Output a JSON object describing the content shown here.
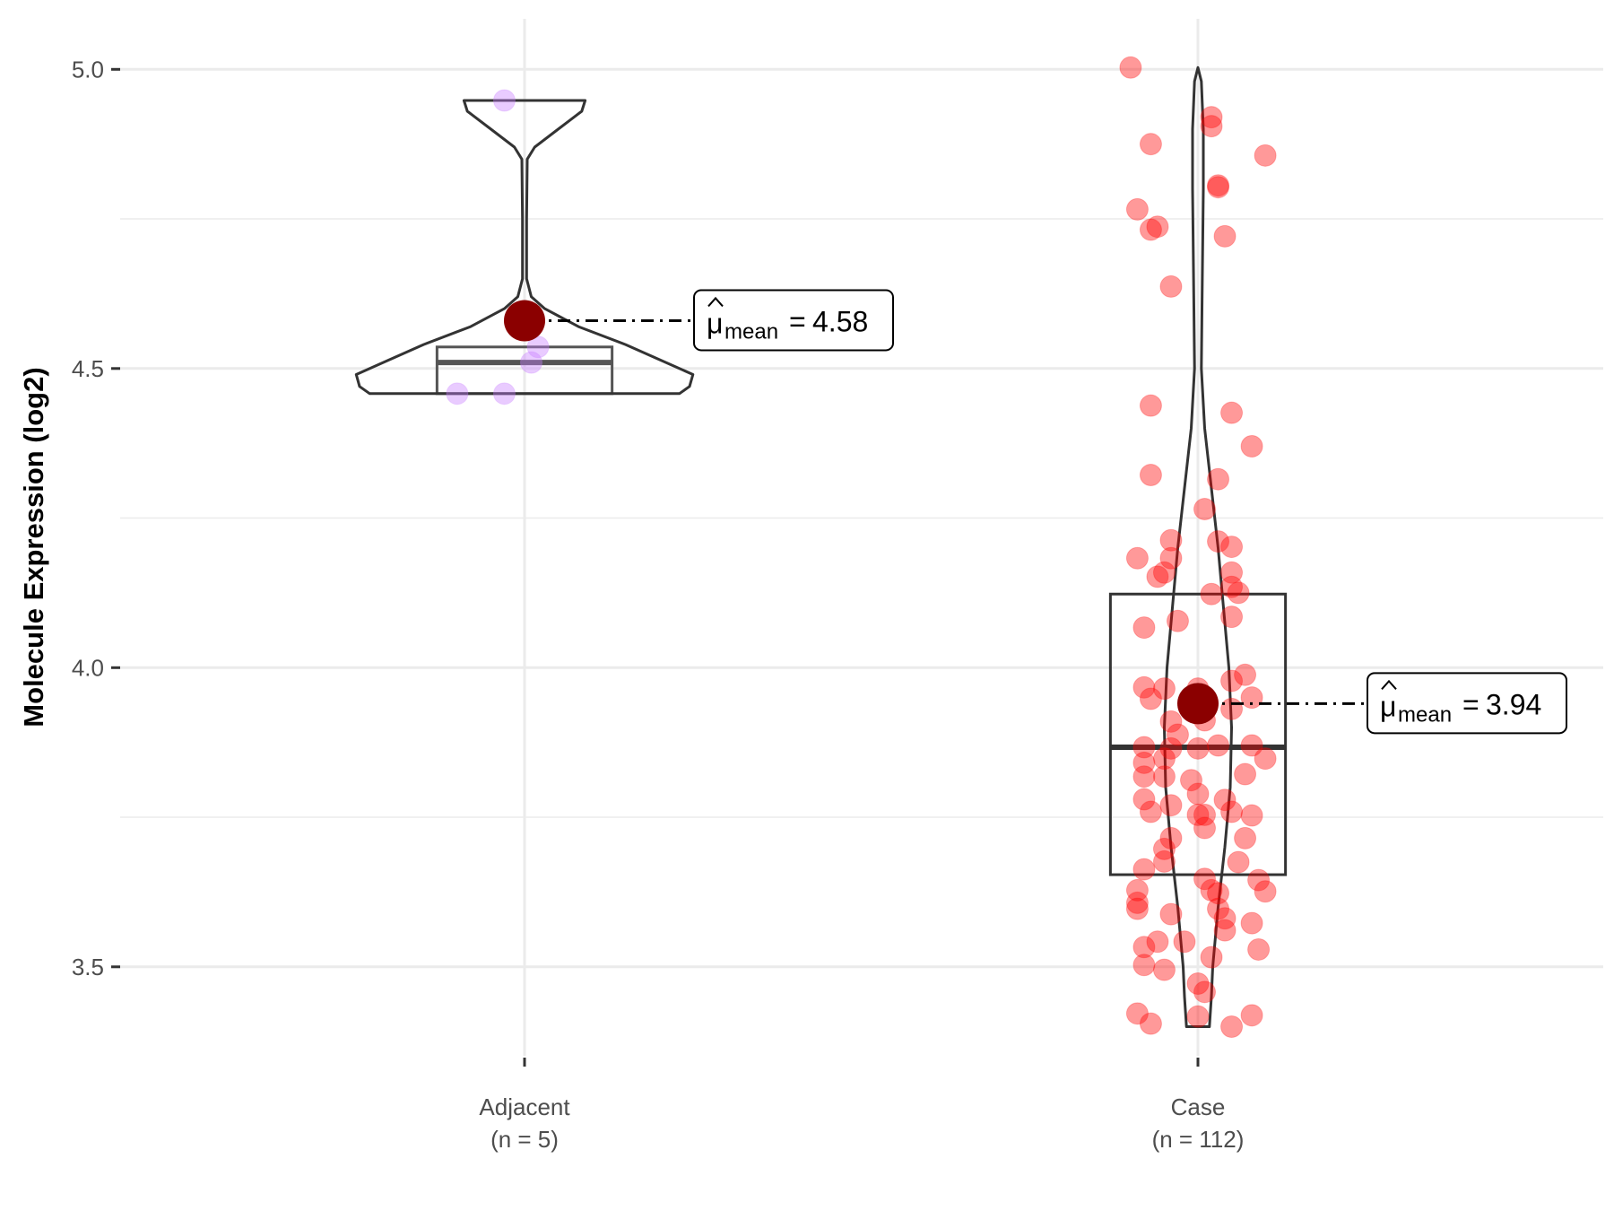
{
  "chart_data": {
    "type": "violin-box-jitter",
    "ylabel": "Molecule Expression (log2)",
    "xlabel": "",
    "ylim": [
      3.35,
      5.085
    ],
    "yticks": [
      "3.5",
      "4.0",
      "4.5",
      "5.0"
    ],
    "ytick_values": [
      3.5,
      4.0,
      4.5,
      5.0
    ],
    "minor_grid": [
      3.75,
      4.25,
      4.75
    ],
    "grid": true,
    "groups": [
      {
        "name": "Adjacent",
        "n_label": "(n = 5)",
        "color": "#C77CFF",
        "mean": 4.58,
        "mean_label_symbol": "μ",
        "mean_label_sub": "mean",
        "mean_label_eq": "=",
        "mean_label_value": "4.58",
        "box": {
          "q1": 4.458,
          "median": 4.51,
          "q3": 4.536
        },
        "violin": [
          [
            4.948,
            0.09
          ],
          [
            4.93,
            0.085
          ],
          [
            4.9,
            0.05
          ],
          [
            4.87,
            0.015
          ],
          [
            4.85,
            0.004
          ],
          [
            4.75,
            0.003
          ],
          [
            4.65,
            0.003
          ],
          [
            4.62,
            0.01
          ],
          [
            4.6,
            0.03
          ],
          [
            4.57,
            0.08
          ],
          [
            4.54,
            0.15
          ],
          [
            4.51,
            0.21
          ],
          [
            4.49,
            0.25
          ],
          [
            4.47,
            0.245
          ],
          [
            4.458,
            0.23
          ]
        ],
        "points": [
          [
            -0.03,
            4.948
          ],
          [
            0.02,
            4.536
          ],
          [
            0.01,
            4.51
          ],
          [
            -0.1,
            4.458
          ],
          [
            -0.03,
            4.458
          ]
        ]
      },
      {
        "name": "Case",
        "n_label": "(n = 112)",
        "color": "#FF0000",
        "mean": 3.94,
        "mean_label_symbol": "μ",
        "mean_label_sub": "mean",
        "mean_label_eq": "=",
        "mean_label_value": "3.94",
        "box": {
          "q1": 3.654,
          "median": 3.867,
          "q3": 4.123
        },
        "violin": [
          [
            5.003,
            0.0
          ],
          [
            4.98,
            0.005
          ],
          [
            4.9,
            0.008
          ],
          [
            4.8,
            0.008
          ],
          [
            4.6,
            0.006
          ],
          [
            4.5,
            0.005
          ],
          [
            4.4,
            0.01
          ],
          [
            4.3,
            0.02
          ],
          [
            4.2,
            0.03
          ],
          [
            4.1,
            0.038
          ],
          [
            4.0,
            0.046
          ],
          [
            3.9,
            0.05
          ],
          [
            3.8,
            0.048
          ],
          [
            3.7,
            0.04
          ],
          [
            3.6,
            0.03
          ],
          [
            3.5,
            0.022
          ],
          [
            3.45,
            0.02
          ],
          [
            3.4,
            0.017
          ]
        ],
        "points": [
          [
            -0.1,
            5.003
          ],
          [
            0.02,
            4.92
          ],
          [
            0.02,
            4.905
          ],
          [
            -0.07,
            4.875
          ],
          [
            0.1,
            4.856
          ],
          [
            0.03,
            4.806
          ],
          [
            0.03,
            4.803
          ],
          [
            -0.09,
            4.766
          ],
          [
            -0.07,
            4.732
          ],
          [
            -0.06,
            4.737
          ],
          [
            0.04,
            4.721
          ],
          [
            -0.04,
            4.637
          ],
          [
            -0.07,
            4.438
          ],
          [
            0.05,
            4.426
          ],
          [
            0.08,
            4.37
          ],
          [
            -0.07,
            4.322
          ],
          [
            0.03,
            4.315
          ],
          [
            0.01,
            4.265
          ],
          [
            -0.09,
            4.183
          ],
          [
            -0.04,
            4.213
          ],
          [
            -0.04,
            4.183
          ],
          [
            0.03,
            4.211
          ],
          [
            0.05,
            4.202
          ],
          [
            -0.06,
            4.152
          ],
          [
            -0.05,
            4.159
          ],
          [
            0.05,
            4.159
          ],
          [
            0.05,
            4.135
          ],
          [
            0.06,
            4.125
          ],
          [
            0.02,
            4.123
          ],
          [
            0.05,
            4.085
          ],
          [
            -0.08,
            4.067
          ],
          [
            -0.03,
            4.078
          ],
          [
            0.05,
            3.978
          ],
          [
            0.07,
            3.988
          ],
          [
            -0.08,
            3.967
          ],
          [
            -0.07,
            3.948
          ],
          [
            -0.05,
            3.965
          ],
          [
            0.0,
            3.965
          ],
          [
            0.08,
            3.95
          ],
          [
            -0.04,
            3.91
          ],
          [
            -0.03,
            3.888
          ],
          [
            0.05,
            3.931
          ],
          [
            0.01,
            3.912
          ],
          [
            -0.08,
            3.867
          ],
          [
            -0.05,
            3.848
          ],
          [
            -0.04,
            3.865
          ],
          [
            0.0,
            3.865
          ],
          [
            0.03,
            3.87
          ],
          [
            0.08,
            3.87
          ],
          [
            -0.08,
            3.841
          ],
          [
            -0.08,
            3.818
          ],
          [
            -0.05,
            3.818
          ],
          [
            0.07,
            3.822
          ],
          [
            0.1,
            3.848
          ],
          [
            -0.01,
            3.812
          ],
          [
            0.0,
            3.789
          ],
          [
            -0.08,
            3.78
          ],
          [
            -0.04,
            3.77
          ],
          [
            0.04,
            3.779
          ],
          [
            0.05,
            3.759
          ],
          [
            -0.07,
            3.759
          ],
          [
            0.0,
            3.754
          ],
          [
            0.01,
            3.754
          ],
          [
            0.08,
            3.753
          ],
          [
            0.01,
            3.732
          ],
          [
            -0.04,
            3.715
          ],
          [
            0.07,
            3.715
          ],
          [
            -0.05,
            3.697
          ],
          [
            -0.05,
            3.676
          ],
          [
            -0.08,
            3.663
          ],
          [
            0.06,
            3.675
          ],
          [
            0.01,
            3.647
          ],
          [
            -0.09,
            3.628
          ],
          [
            0.09,
            3.645
          ],
          [
            -0.09,
            3.607
          ],
          [
            -0.09,
            3.597
          ],
          [
            0.02,
            3.628
          ],
          [
            0.03,
            3.623
          ],
          [
            0.03,
            3.597
          ],
          [
            0.1,
            3.626
          ],
          [
            -0.04,
            3.588
          ],
          [
            0.04,
            3.581
          ],
          [
            0.08,
            3.573
          ],
          [
            0.04,
            3.561
          ],
          [
            -0.02,
            3.542
          ],
          [
            -0.08,
            3.533
          ],
          [
            -0.06,
            3.542
          ],
          [
            0.09,
            3.529
          ],
          [
            -0.08,
            3.503
          ],
          [
            -0.05,
            3.495
          ],
          [
            0.02,
            3.516
          ],
          [
            0.0,
            3.472
          ],
          [
            0.01,
            3.458
          ],
          [
            -0.09,
            3.422
          ],
          [
            -0.07,
            3.405
          ],
          [
            0.0,
            3.417
          ],
          [
            0.05,
            3.4
          ],
          [
            0.08,
            3.419
          ]
        ]
      }
    ]
  }
}
